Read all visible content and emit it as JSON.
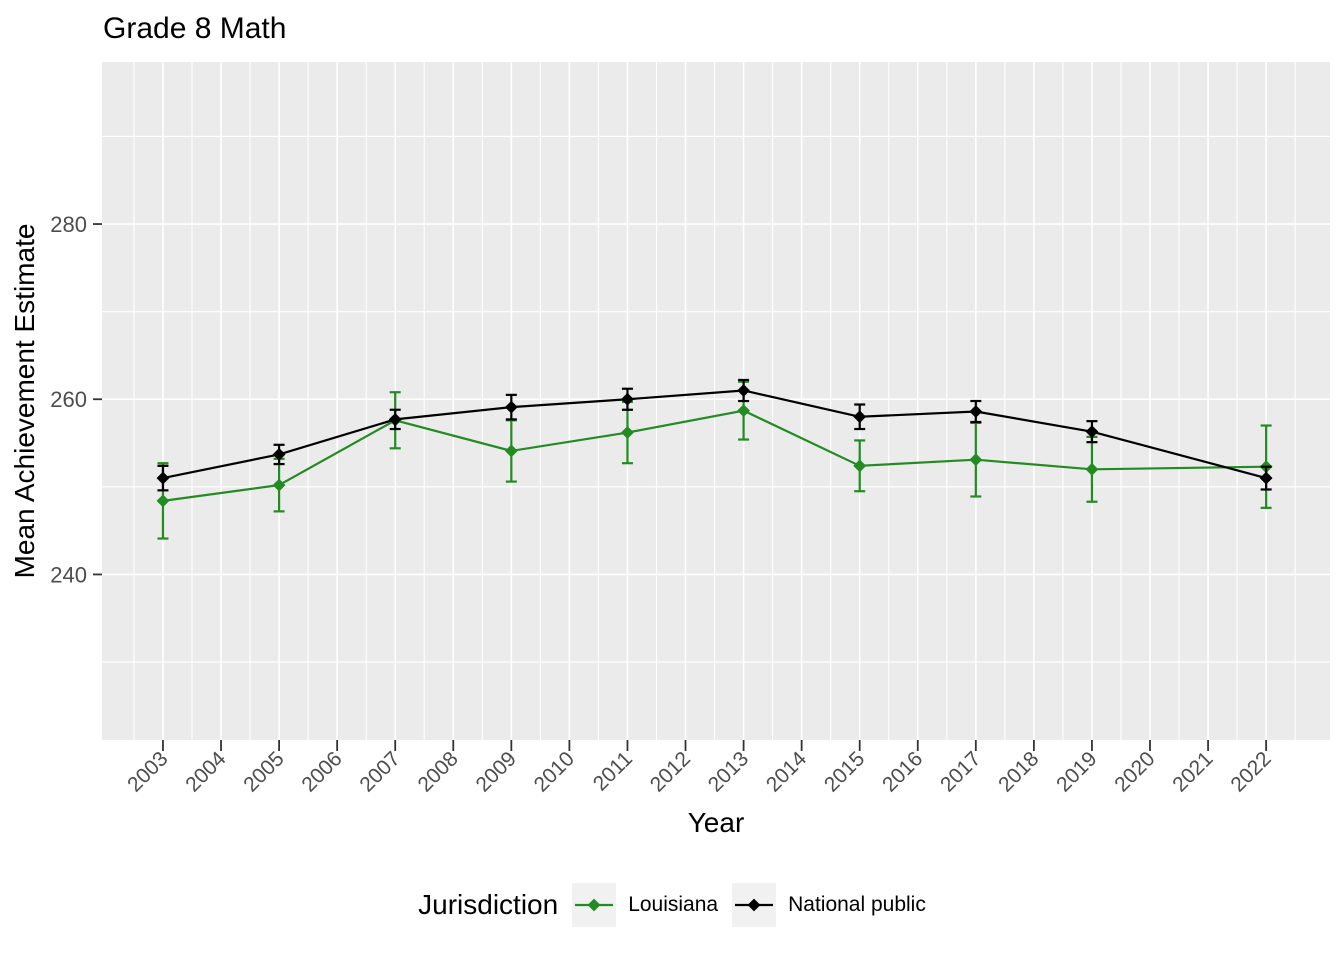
{
  "page": {
    "background": "#FFFFFF"
  },
  "chart_data": {
    "type": "line",
    "title": "Grade 8 Math",
    "xlabel": "Year",
    "ylabel": "Mean Achievement Estimate",
    "legend_title": "Jurisdiction",
    "legend_position": "bottom",
    "panel_color": "#EBEBEB",
    "gridline_color": "#FFFFFF",
    "tick_label_color": "#4D4D4D",
    "tick_mark_color": "#333333",
    "grid": "major and minor gridlines on",
    "x_ticks": [
      2003,
      2004,
      2005,
      2006,
      2007,
      2008,
      2009,
      2010,
      2011,
      2012,
      2013,
      2014,
      2015,
      2016,
      2017,
      2018,
      2019,
      2020,
      2021,
      2022
    ],
    "y_ticks": [
      240,
      260,
      280
    ],
    "y_minor_gridlines": [
      230,
      250,
      270,
      290
    ],
    "xlim": [
      2001.95,
      2023.1
    ],
    "ylim": [
      221.1,
      298.5
    ],
    "x": [
      2003,
      2005,
      2007,
      2009,
      2011,
      2013,
      2015,
      2017,
      2019,
      2022
    ],
    "series": [
      {
        "name": "Louisiana",
        "color": "#228B22",
        "marker": "diamond",
        "values": [
          248.4,
          250.2,
          257.6,
          254.1,
          256.2,
          258.7,
          252.4,
          253.1,
          252.0,
          252.3
        ],
        "error": [
          4.3,
          3.0,
          3.2,
          3.5,
          3.5,
          3.3,
          2.9,
          4.2,
          3.7,
          4.7
        ]
      },
      {
        "name": "National public",
        "color": "#000000",
        "marker": "diamond",
        "values": [
          251.0,
          253.7,
          257.7,
          259.1,
          260.0,
          261.0,
          258.0,
          258.6,
          256.3,
          251.0
        ],
        "error": [
          1.4,
          1.1,
          1.1,
          1.4,
          1.2,
          1.2,
          1.4,
          1.2,
          1.2,
          1.3
        ]
      }
    ]
  }
}
